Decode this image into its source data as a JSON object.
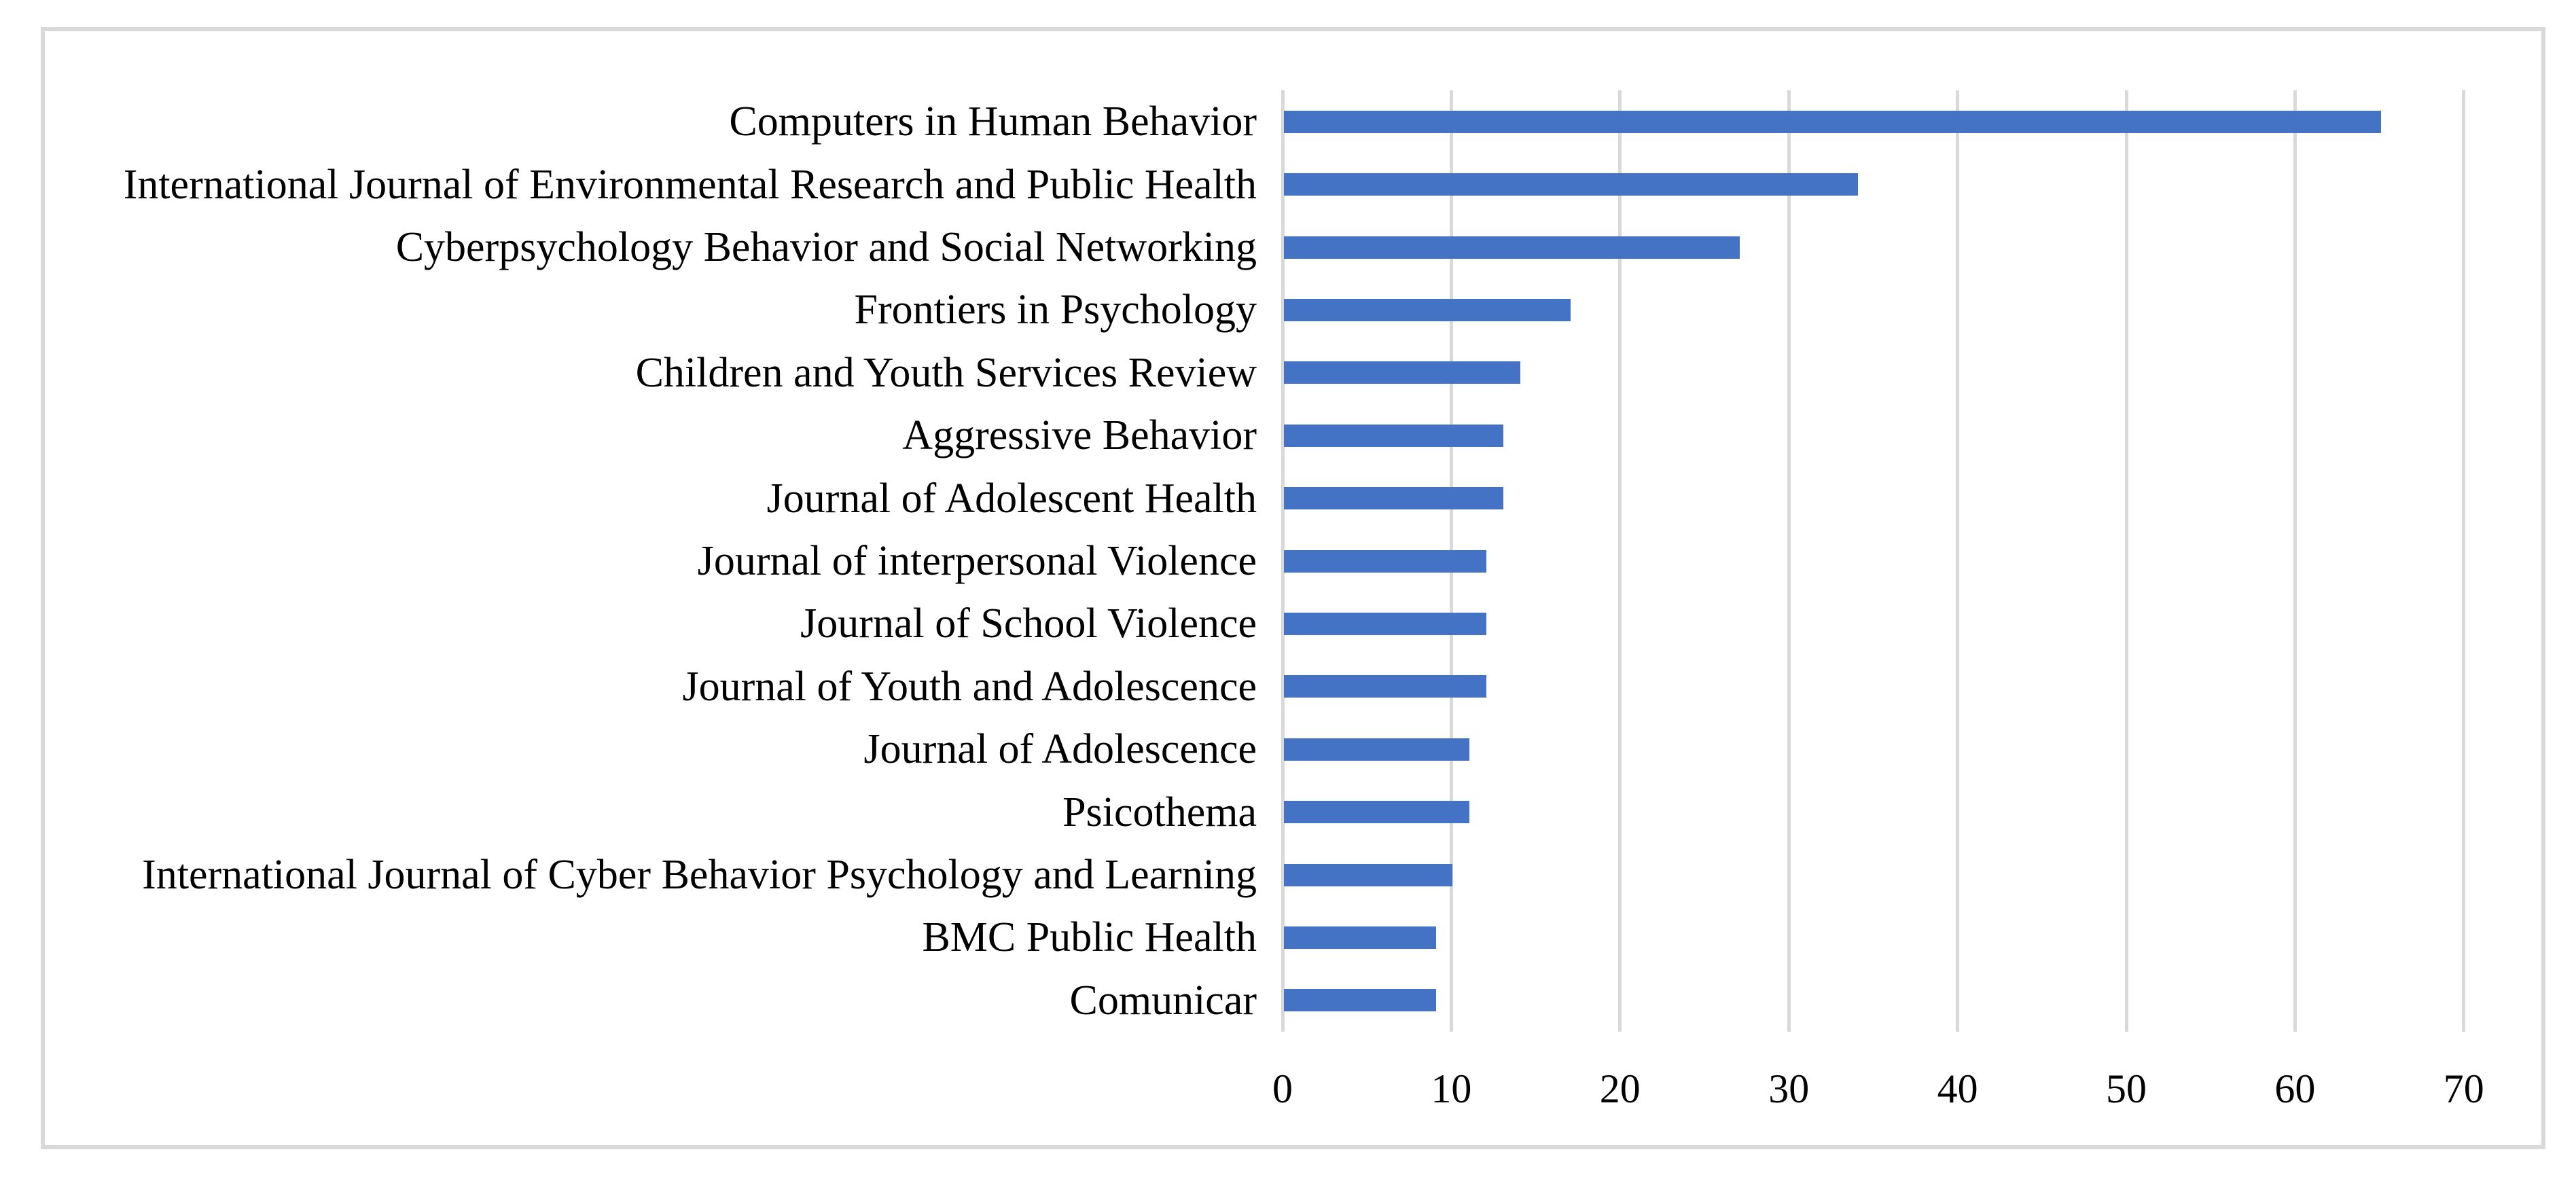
{
  "chart_data": {
    "type": "bar",
    "orientation": "horizontal",
    "title": "",
    "xlabel": "",
    "ylabel": "",
    "categories": [
      "Computers in Human Behavior",
      "International Journal of Environmental Research and Public Health",
      "Cyberpsychology Behavior and Social Networking",
      "Frontiers in Psychology",
      "Children and Youth Services Review",
      "Aggressive Behavior",
      "Journal of Adolescent Health",
      "Journal of interpersonal Violence",
      "Journal of School Violence",
      "Journal of Youth and Adolescence",
      "Journal of Adolescence",
      "Psicothema",
      "International Journal of Cyber Behavior Psychology and Learning",
      "BMC Public Health",
      "Comunicar"
    ],
    "values": [
      65,
      34,
      27,
      17,
      14,
      13,
      13,
      12,
      12,
      12,
      11,
      11,
      10,
      9,
      9
    ],
    "xlim": [
      0,
      70
    ],
    "xticks": [
      0,
      10,
      20,
      30,
      40,
      50,
      60,
      70
    ],
    "grid": "vertical-gridlines-on",
    "legend": "none",
    "colors": {
      "bar": "#4472C4",
      "gridline": "#D9D9D9",
      "frame_border": "#D9D9D9",
      "background": "#FFFFFF",
      "text": "#000000"
    }
  }
}
